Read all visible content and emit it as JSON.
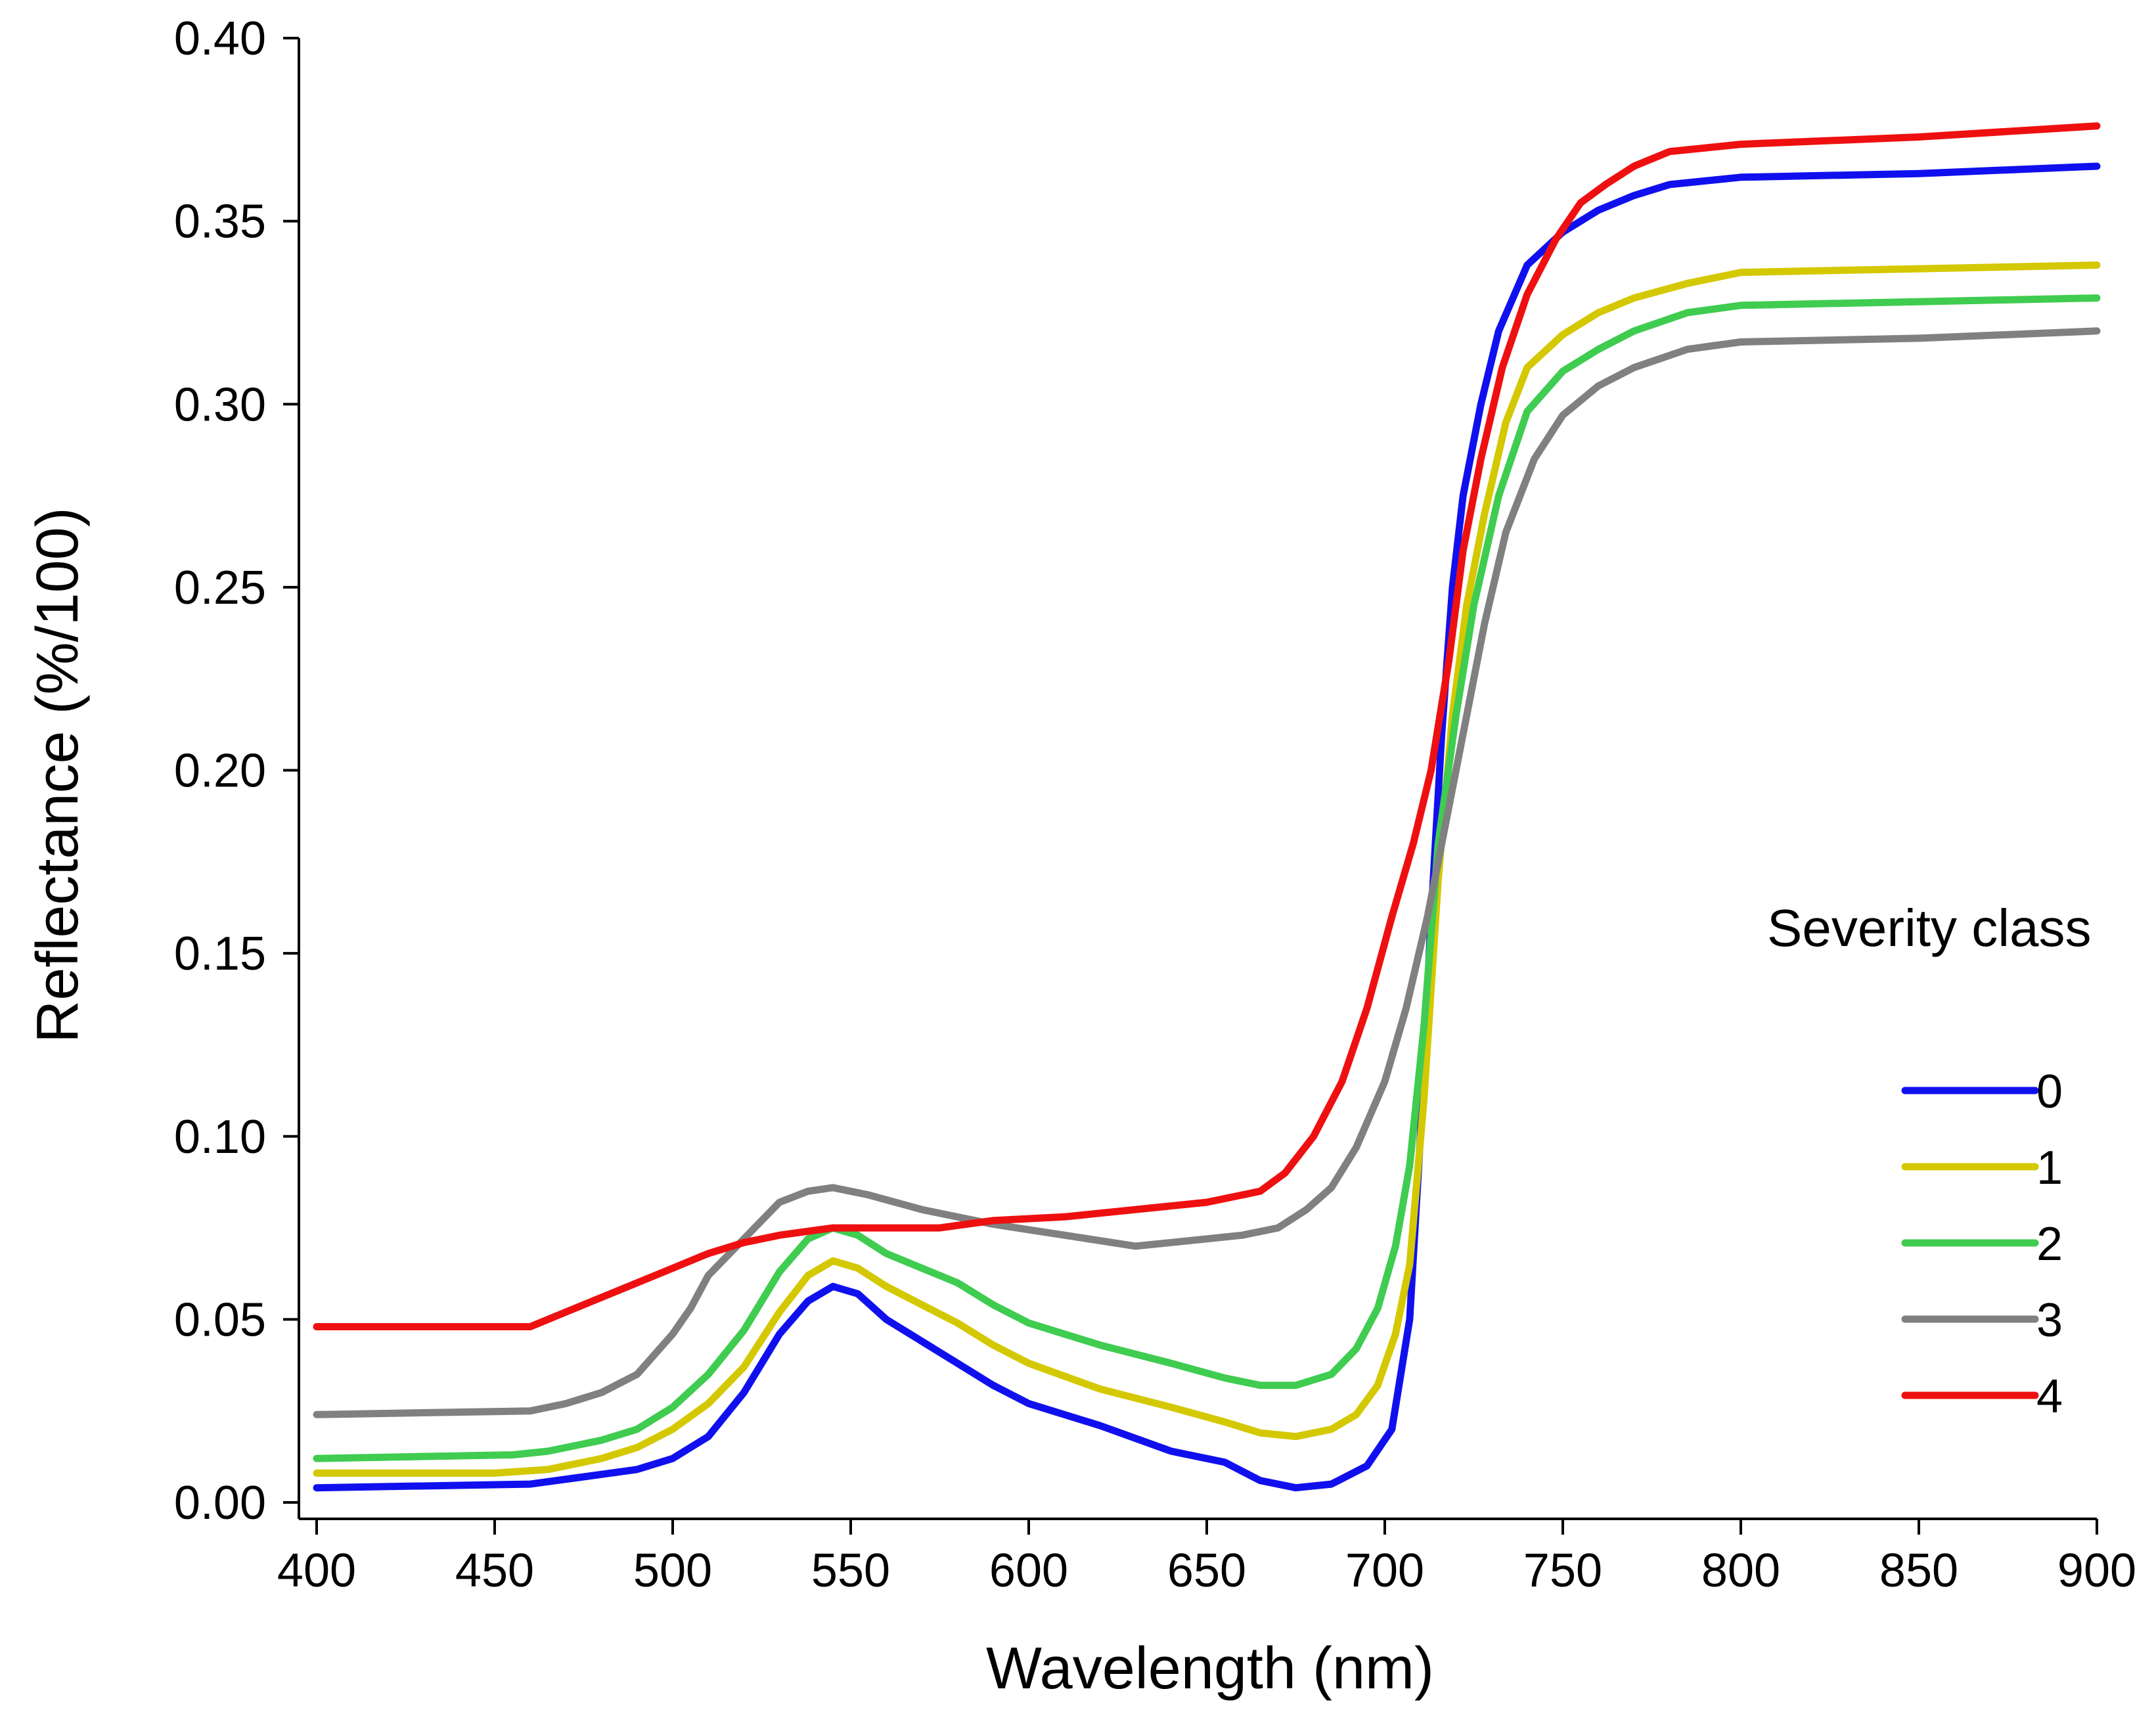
{
  "chart_data": {
    "type": "line",
    "title": "",
    "xlabel": "Wavelength (nm)",
    "ylabel": "Reflectance (%/100)",
    "xlim": [
      400,
      900
    ],
    "ylim": [
      0,
      0.4
    ],
    "xticks": [
      400,
      450,
      500,
      550,
      600,
      650,
      700,
      750,
      800,
      850,
      900
    ],
    "yticks": [
      0.0,
      0.05,
      0.1,
      0.15,
      0.2,
      0.25,
      0.3,
      0.35,
      0.4
    ],
    "xtick_labels": [
      "400",
      "450",
      "500",
      "550",
      "600",
      "650",
      "700",
      "750",
      "800",
      "850",
      "900"
    ],
    "ytick_labels": [
      "0.00",
      "0.05",
      "0.10",
      "0.15",
      "0.20",
      "0.25",
      "0.30",
      "0.35",
      "0.40"
    ],
    "grid": false,
    "legend": {
      "title": "Severity class",
      "position": "right"
    },
    "series": [
      {
        "name": "0",
        "color": "#1010ee",
        "points": [
          [
            400,
            0.004
          ],
          [
            460,
            0.005
          ],
          [
            475,
            0.007
          ],
          [
            490,
            0.009
          ],
          [
            500,
            0.012
          ],
          [
            510,
            0.018
          ],
          [
            520,
            0.03
          ],
          [
            530,
            0.046
          ],
          [
            538,
            0.055
          ],
          [
            545,
            0.059
          ],
          [
            552,
            0.057
          ],
          [
            560,
            0.05
          ],
          [
            570,
            0.044
          ],
          [
            580,
            0.038
          ],
          [
            590,
            0.032
          ],
          [
            600,
            0.027
          ],
          [
            620,
            0.021
          ],
          [
            640,
            0.014
          ],
          [
            655,
            0.011
          ],
          [
            665,
            0.006
          ],
          [
            675,
            0.004
          ],
          [
            685,
            0.005
          ],
          [
            695,
            0.01
          ],
          [
            702,
            0.02
          ],
          [
            707,
            0.05
          ],
          [
            710,
            0.1
          ],
          [
            713,
            0.16
          ],
          [
            716,
            0.21
          ],
          [
            719,
            0.25
          ],
          [
            722,
            0.275
          ],
          [
            727,
            0.3
          ],
          [
            732,
            0.32
          ],
          [
            740,
            0.338
          ],
          [
            750,
            0.347
          ],
          [
            760,
            0.353
          ],
          [
            770,
            0.357
          ],
          [
            780,
            0.36
          ],
          [
            800,
            0.362
          ],
          [
            850,
            0.363
          ],
          [
            900,
            0.365
          ]
        ]
      },
      {
        "name": "1",
        "color": "#d4c800",
        "points": [
          [
            400,
            0.008
          ],
          [
            450,
            0.008
          ],
          [
            465,
            0.009
          ],
          [
            480,
            0.012
          ],
          [
            490,
            0.015
          ],
          [
            500,
            0.02
          ],
          [
            510,
            0.027
          ],
          [
            520,
            0.037
          ],
          [
            530,
            0.052
          ],
          [
            538,
            0.062
          ],
          [
            545,
            0.066
          ],
          [
            552,
            0.064
          ],
          [
            560,
            0.059
          ],
          [
            570,
            0.054
          ],
          [
            580,
            0.049
          ],
          [
            590,
            0.043
          ],
          [
            600,
            0.038
          ],
          [
            620,
            0.031
          ],
          [
            640,
            0.026
          ],
          [
            655,
            0.022
          ],
          [
            665,
            0.019
          ],
          [
            675,
            0.018
          ],
          [
            685,
            0.02
          ],
          [
            692,
            0.024
          ],
          [
            698,
            0.032
          ],
          [
            703,
            0.046
          ],
          [
            707,
            0.065
          ],
          [
            711,
            0.11
          ],
          [
            715,
            0.17
          ],
          [
            719,
            0.215
          ],
          [
            723,
            0.245
          ],
          [
            728,
            0.27
          ],
          [
            734,
            0.295
          ],
          [
            740,
            0.31
          ],
          [
            750,
            0.319
          ],
          [
            760,
            0.325
          ],
          [
            770,
            0.329
          ],
          [
            785,
            0.333
          ],
          [
            800,
            0.336
          ],
          [
            850,
            0.337
          ],
          [
            900,
            0.338
          ]
        ]
      },
      {
        "name": "2",
        "color": "#3fcc50",
        "points": [
          [
            400,
            0.012
          ],
          [
            455,
            0.013
          ],
          [
            465,
            0.014
          ],
          [
            480,
            0.017
          ],
          [
            490,
            0.02
          ],
          [
            500,
            0.026
          ],
          [
            510,
            0.035
          ],
          [
            520,
            0.047
          ],
          [
            530,
            0.063
          ],
          [
            538,
            0.072
          ],
          [
            545,
            0.075
          ],
          [
            552,
            0.073
          ],
          [
            560,
            0.068
          ],
          [
            570,
            0.064
          ],
          [
            580,
            0.06
          ],
          [
            590,
            0.054
          ],
          [
            600,
            0.049
          ],
          [
            620,
            0.043
          ],
          [
            640,
            0.038
          ],
          [
            655,
            0.034
          ],
          [
            665,
            0.032
          ],
          [
            675,
            0.032
          ],
          [
            685,
            0.035
          ],
          [
            692,
            0.042
          ],
          [
            698,
            0.053
          ],
          [
            703,
            0.07
          ],
          [
            707,
            0.092
          ],
          [
            711,
            0.13
          ],
          [
            715,
            0.18
          ],
          [
            720,
            0.215
          ],
          [
            725,
            0.245
          ],
          [
            732,
            0.275
          ],
          [
            740,
            0.298
          ],
          [
            750,
            0.309
          ],
          [
            760,
            0.315
          ],
          [
            770,
            0.32
          ],
          [
            785,
            0.325
          ],
          [
            800,
            0.327
          ],
          [
            850,
            0.328
          ],
          [
            900,
            0.329
          ]
        ]
      },
      {
        "name": "3",
        "color": "#808080",
        "points": [
          [
            400,
            0.024
          ],
          [
            460,
            0.025
          ],
          [
            470,
            0.027
          ],
          [
            480,
            0.03
          ],
          [
            490,
            0.035
          ],
          [
            500,
            0.046
          ],
          [
            505,
            0.053
          ],
          [
            510,
            0.062
          ],
          [
            520,
            0.072
          ],
          [
            530,
            0.082
          ],
          [
            538,
            0.085
          ],
          [
            545,
            0.086
          ],
          [
            555,
            0.084
          ],
          [
            570,
            0.08
          ],
          [
            590,
            0.076
          ],
          [
            610,
            0.073
          ],
          [
            630,
            0.07
          ],
          [
            650,
            0.072
          ],
          [
            660,
            0.073
          ],
          [
            670,
            0.075
          ],
          [
            678,
            0.08
          ],
          [
            685,
            0.086
          ],
          [
            692,
            0.097
          ],
          [
            700,
            0.115
          ],
          [
            706,
            0.135
          ],
          [
            712,
            0.16
          ],
          [
            718,
            0.19
          ],
          [
            723,
            0.215
          ],
          [
            728,
            0.24
          ],
          [
            734,
            0.265
          ],
          [
            742,
            0.285
          ],
          [
            750,
            0.297
          ],
          [
            760,
            0.305
          ],
          [
            770,
            0.31
          ],
          [
            785,
            0.315
          ],
          [
            800,
            0.317
          ],
          [
            850,
            0.318
          ],
          [
            900,
            0.32
          ]
        ]
      },
      {
        "name": "4",
        "color": "#ee1010",
        "points": [
          [
            400,
            0.048
          ],
          [
            460,
            0.048
          ],
          [
            470,
            0.052
          ],
          [
            480,
            0.056
          ],
          [
            490,
            0.06
          ],
          [
            500,
            0.064
          ],
          [
            510,
            0.068
          ],
          [
            520,
            0.071
          ],
          [
            530,
            0.073
          ],
          [
            545,
            0.075
          ],
          [
            560,
            0.075
          ],
          [
            575,
            0.075
          ],
          [
            590,
            0.077
          ],
          [
            610,
            0.078
          ],
          [
            630,
            0.08
          ],
          [
            650,
            0.082
          ],
          [
            665,
            0.085
          ],
          [
            672,
            0.09
          ],
          [
            680,
            0.1
          ],
          [
            688,
            0.115
          ],
          [
            695,
            0.135
          ],
          [
            702,
            0.16
          ],
          [
            708,
            0.18
          ],
          [
            713,
            0.2
          ],
          [
            718,
            0.23
          ],
          [
            722,
            0.26
          ],
          [
            727,
            0.285
          ],
          [
            733,
            0.31
          ],
          [
            740,
            0.33
          ],
          [
            748,
            0.345
          ],
          [
            755,
            0.355
          ],
          [
            762,
            0.36
          ],
          [
            770,
            0.365
          ],
          [
            780,
            0.369
          ],
          [
            800,
            0.371
          ],
          [
            850,
            0.373
          ],
          [
            900,
            0.376
          ]
        ]
      }
    ]
  }
}
